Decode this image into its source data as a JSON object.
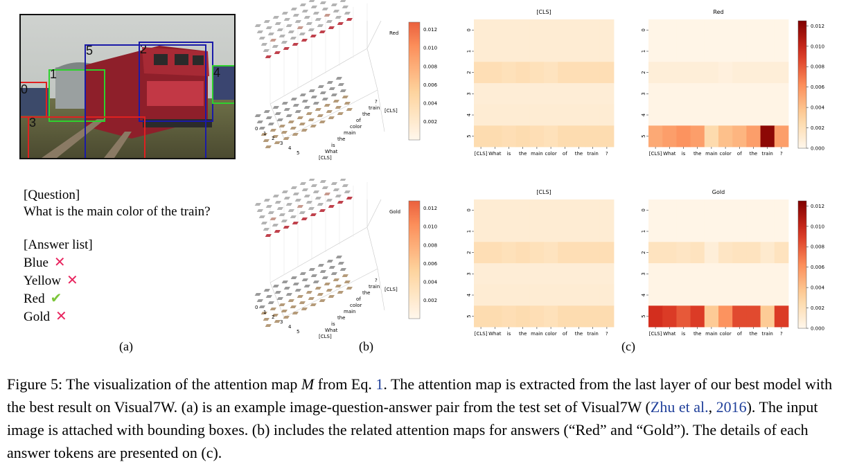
{
  "photo": {
    "boxes": [
      {
        "num": "0",
        "color": "#e02020"
      },
      {
        "num": "1",
        "color": "#2ed12e"
      },
      {
        "num": "2",
        "color": "#1a1aa8"
      },
      {
        "num": "3",
        "color": "#e02020"
      },
      {
        "num": "4",
        "color": "#2ed12e"
      },
      {
        "num": "5",
        "color": "#1a1aa8"
      }
    ]
  },
  "qa": {
    "question_header": "[Question]",
    "question": "What is the main color of the train?",
    "answer_header": "[Answer list]",
    "answers": [
      {
        "text": "Blue",
        "mark": "✕",
        "mark_color": "#e8245e"
      },
      {
        "text": "Yellow",
        "mark": "✕",
        "mark_color": "#e8245e"
      },
      {
        "text": "Red",
        "mark": "✔",
        "mark_color": "#7cc63a"
      },
      {
        "text": "Gold",
        "mark": "✕",
        "mark_color": "#e8245e"
      }
    ]
  },
  "sublabels": {
    "a": "(a)",
    "b": "(b)",
    "c": "(c)"
  },
  "chart_data": [
    {
      "type": "heatmap",
      "title": "[CLS]",
      "x_labels": [
        "[CLS]",
        "What",
        "is",
        "the",
        "main",
        "color",
        "of",
        "the",
        "train",
        "?"
      ],
      "y_labels": [
        "0",
        "1",
        "2",
        "3",
        "4",
        "5"
      ],
      "vmin": 0,
      "vmax": 0.0125,
      "values": [
        [
          0.001,
          0.001,
          0.001,
          0.001,
          0.001,
          0.001,
          0.001,
          0.001,
          0.001,
          0.001
        ],
        [
          0.001,
          0.001,
          0.001,
          0.001,
          0.001,
          0.001,
          0.001,
          0.001,
          0.001,
          0.001
        ],
        [
          0.0022,
          0.0022,
          0.002,
          0.0022,
          0.002,
          0.0018,
          0.0022,
          0.0022,
          0.0022,
          0.0022
        ],
        [
          0.0009,
          0.0009,
          0.0009,
          0.0009,
          0.0009,
          0.0009,
          0.0009,
          0.0009,
          0.0009,
          0.0009
        ],
        [
          0.001,
          0.001,
          0.001,
          0.001,
          0.001,
          0.001,
          0.001,
          0.001,
          0.001,
          0.001
        ],
        [
          0.0024,
          0.0024,
          0.0022,
          0.0024,
          0.0022,
          0.002,
          0.0024,
          0.0024,
          0.0024,
          0.0024
        ]
      ]
    },
    {
      "type": "heatmap",
      "title": "Red",
      "x_labels": [
        "[CLS]",
        "What",
        "is",
        "the",
        "main",
        "color",
        "of",
        "the",
        "train",
        "?"
      ],
      "y_labels": [
        "0",
        "1",
        "2",
        "3",
        "4",
        "5"
      ],
      "vmin": 0,
      "vmax": 0.0125,
      "colorbar_ticks": [
        "0.012",
        "0.010",
        "0.008",
        "0.006",
        "0.004",
        "0.002",
        "0.000"
      ],
      "values": [
        [
          0.0002,
          0.0002,
          0.0002,
          0.0002,
          0.0002,
          0.0002,
          0.0002,
          0.0002,
          0.0002,
          0.0002
        ],
        [
          0.0002,
          0.0002,
          0.0002,
          0.0002,
          0.0002,
          0.0002,
          0.0002,
          0.0002,
          0.0002,
          0.0002
        ],
        [
          0.0008,
          0.0008,
          0.0008,
          0.0008,
          0.0008,
          0.0006,
          0.0008,
          0.0008,
          0.0008,
          0.0008
        ],
        [
          0.0003,
          0.0003,
          0.0003,
          0.0003,
          0.0003,
          0.0003,
          0.0003,
          0.0003,
          0.0003,
          0.0003
        ],
        [
          0.0003,
          0.0003,
          0.0003,
          0.0003,
          0.0003,
          0.0003,
          0.0003,
          0.0003,
          0.0003,
          0.0003
        ],
        [
          0.005,
          0.0055,
          0.006,
          0.0055,
          0.0025,
          0.004,
          0.0045,
          0.0055,
          0.012,
          0.0055
        ]
      ]
    },
    {
      "type": "heatmap",
      "title": "[CLS]",
      "x_labels": [
        "[CLS]",
        "What",
        "is",
        "the",
        "main",
        "color",
        "of",
        "the",
        "train",
        "?"
      ],
      "y_labels": [
        "0",
        "1",
        "2",
        "3",
        "4",
        "5"
      ],
      "vmin": 0,
      "vmax": 0.0125,
      "values": [
        [
          0.001,
          0.001,
          0.001,
          0.001,
          0.001,
          0.001,
          0.001,
          0.001,
          0.001,
          0.001
        ],
        [
          0.001,
          0.001,
          0.001,
          0.001,
          0.001,
          0.001,
          0.001,
          0.001,
          0.001,
          0.001
        ],
        [
          0.0022,
          0.0022,
          0.002,
          0.0022,
          0.002,
          0.0018,
          0.0022,
          0.0022,
          0.0022,
          0.0022
        ],
        [
          0.0009,
          0.0009,
          0.0009,
          0.0009,
          0.0009,
          0.0009,
          0.0009,
          0.0009,
          0.0009,
          0.0009
        ],
        [
          0.001,
          0.001,
          0.001,
          0.001,
          0.001,
          0.001,
          0.001,
          0.001,
          0.001,
          0.001
        ],
        [
          0.0024,
          0.0024,
          0.0022,
          0.0024,
          0.0022,
          0.002,
          0.0024,
          0.0024,
          0.0024,
          0.0024
        ]
      ]
    },
    {
      "type": "heatmap",
      "title": "Gold",
      "x_labels": [
        "[CLS]",
        "What",
        "is",
        "the",
        "main",
        "color",
        "of",
        "the",
        "train",
        "?"
      ],
      "y_labels": [
        "0",
        "1",
        "2",
        "3",
        "4",
        "5"
      ],
      "vmin": 0,
      "vmax": 0.0125,
      "colorbar_ticks": [
        "0.012",
        "0.010",
        "0.008",
        "0.006",
        "0.004",
        "0.002",
        "0.000"
      ],
      "values": [
        [
          0.0002,
          0.0002,
          0.0002,
          0.0002,
          0.0002,
          0.0002,
          0.0002,
          0.0002,
          0.0002,
          0.0002
        ],
        [
          0.0002,
          0.0002,
          0.0002,
          0.0002,
          0.0002,
          0.0002,
          0.0002,
          0.0002,
          0.0002,
          0.0002
        ],
        [
          0.0018,
          0.0018,
          0.0016,
          0.0018,
          0.0008,
          0.0016,
          0.0018,
          0.0018,
          0.0012,
          0.0018
        ],
        [
          0.0003,
          0.0003,
          0.0003,
          0.0003,
          0.0003,
          0.0003,
          0.0003,
          0.0003,
          0.0003,
          0.0003
        ],
        [
          0.0003,
          0.0003,
          0.0003,
          0.0003,
          0.0003,
          0.0003,
          0.0003,
          0.0003,
          0.0003,
          0.0003
        ],
        [
          0.0095,
          0.009,
          0.008,
          0.009,
          0.0035,
          0.006,
          0.0085,
          0.0085,
          0.0035,
          0.009
        ]
      ]
    },
    {
      "type": "scatter",
      "label": "Red",
      "x_labels": [
        "[CLS]",
        "What",
        "is",
        "the",
        "main",
        "color",
        "of",
        "the",
        "train",
        "?"
      ],
      "y_labels": [
        "0",
        "1",
        "2",
        "3",
        "4",
        "5"
      ],
      "z_labels": [
        "[CLS]",
        "Red"
      ],
      "colorbar_ticks": [
        "0.012",
        "0.010",
        "0.008",
        "0.006",
        "0.004",
        "0.002"
      ]
    },
    {
      "type": "scatter",
      "label": "Gold",
      "x_labels": [
        "[CLS]",
        "What",
        "is",
        "the",
        "main",
        "color",
        "of",
        "the",
        "train",
        "?"
      ],
      "y_labels": [
        "0",
        "1",
        "2",
        "3",
        "4",
        "5"
      ],
      "z_labels": [
        "[CLS]",
        "Gold"
      ],
      "colorbar_ticks": [
        "0.012",
        "0.010",
        "0.008",
        "0.006",
        "0.004",
        "0.002"
      ]
    }
  ],
  "caption": {
    "part1": "Figure 5: The visualization of the attention map ",
    "symbol": "M",
    "part2": " from Eq. ",
    "eq_ref": "1",
    "part3": ". The attention map is extracted from the last layer of our best model with the best result on Visual7W. (a) is an example image-question-answer pair from the test set of Visual7W (",
    "cite_author": "Zhu et al.",
    "cite_sep": ", ",
    "cite_year": "2016",
    "part4": "). The input image is attached with bounding boxes. (b) includes the related attention maps for answers (“Red” and “Gold”). The details of each answer tokens are presented on (c)."
  }
}
